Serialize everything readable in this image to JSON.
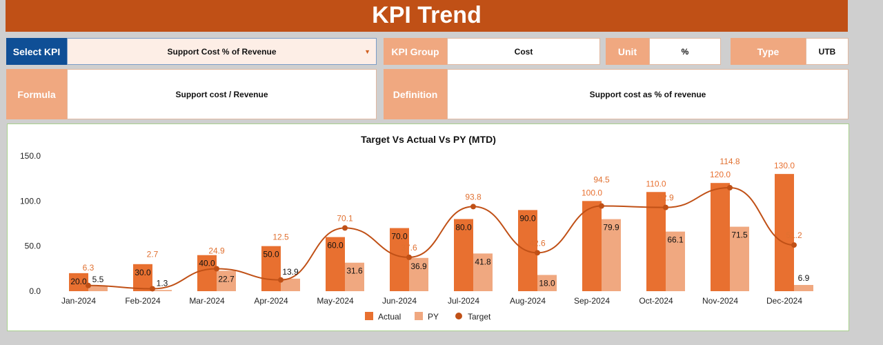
{
  "header": {
    "title": "KPI Trend"
  },
  "select_kpi": {
    "label": "Select KPI",
    "value": "Support Cost % of Revenue"
  },
  "kpi_group": {
    "label": "KPI Group",
    "value": "Cost"
  },
  "unit": {
    "label": "Unit",
    "value": "%"
  },
  "type": {
    "label": "Type",
    "value": "UTB"
  },
  "formula": {
    "label": "Formula",
    "value": "Support cost / Revenue"
  },
  "definition": {
    "label": "Definition",
    "value": "Support cost as % of revenue"
  },
  "colors": {
    "header": "#c05016",
    "actual": "#e87030",
    "py": "#f0a880",
    "target": "#c05016",
    "select_label": "#0f4f96"
  },
  "chart_data": {
    "type": "bar",
    "title": "Target Vs Actual Vs PY (MTD)",
    "categories": [
      "Jan-2024",
      "Feb-2024",
      "Mar-2024",
      "Apr-2024",
      "May-2024",
      "Jun-2024",
      "Jul-2024",
      "Aug-2024",
      "Sep-2024",
      "Oct-2024",
      "Nov-2024",
      "Dec-2024"
    ],
    "ylim": [
      0,
      150
    ],
    "yticks": [
      "0.0",
      "50.0",
      "100.0",
      "150.0"
    ],
    "legend": "bottom",
    "series": [
      {
        "name": "Actual",
        "type": "bar",
        "values": [
          20,
          30,
          40,
          50,
          60,
          70,
          80,
          90,
          100,
          110,
          120,
          130
        ]
      },
      {
        "name": "PY",
        "type": "bar",
        "values": [
          5.5,
          1.3,
          22.7,
          13.9,
          31.6,
          36.9,
          41.8,
          18.0,
          79.9,
          66.1,
          71.5,
          6.9
        ]
      },
      {
        "name": "Target",
        "type": "line",
        "values": [
          6.3,
          2.7,
          24.9,
          12.5,
          70.1,
          37.6,
          93.8,
          42.6,
          94.5,
          92.9,
          114.8,
          51.2
        ]
      }
    ]
  }
}
